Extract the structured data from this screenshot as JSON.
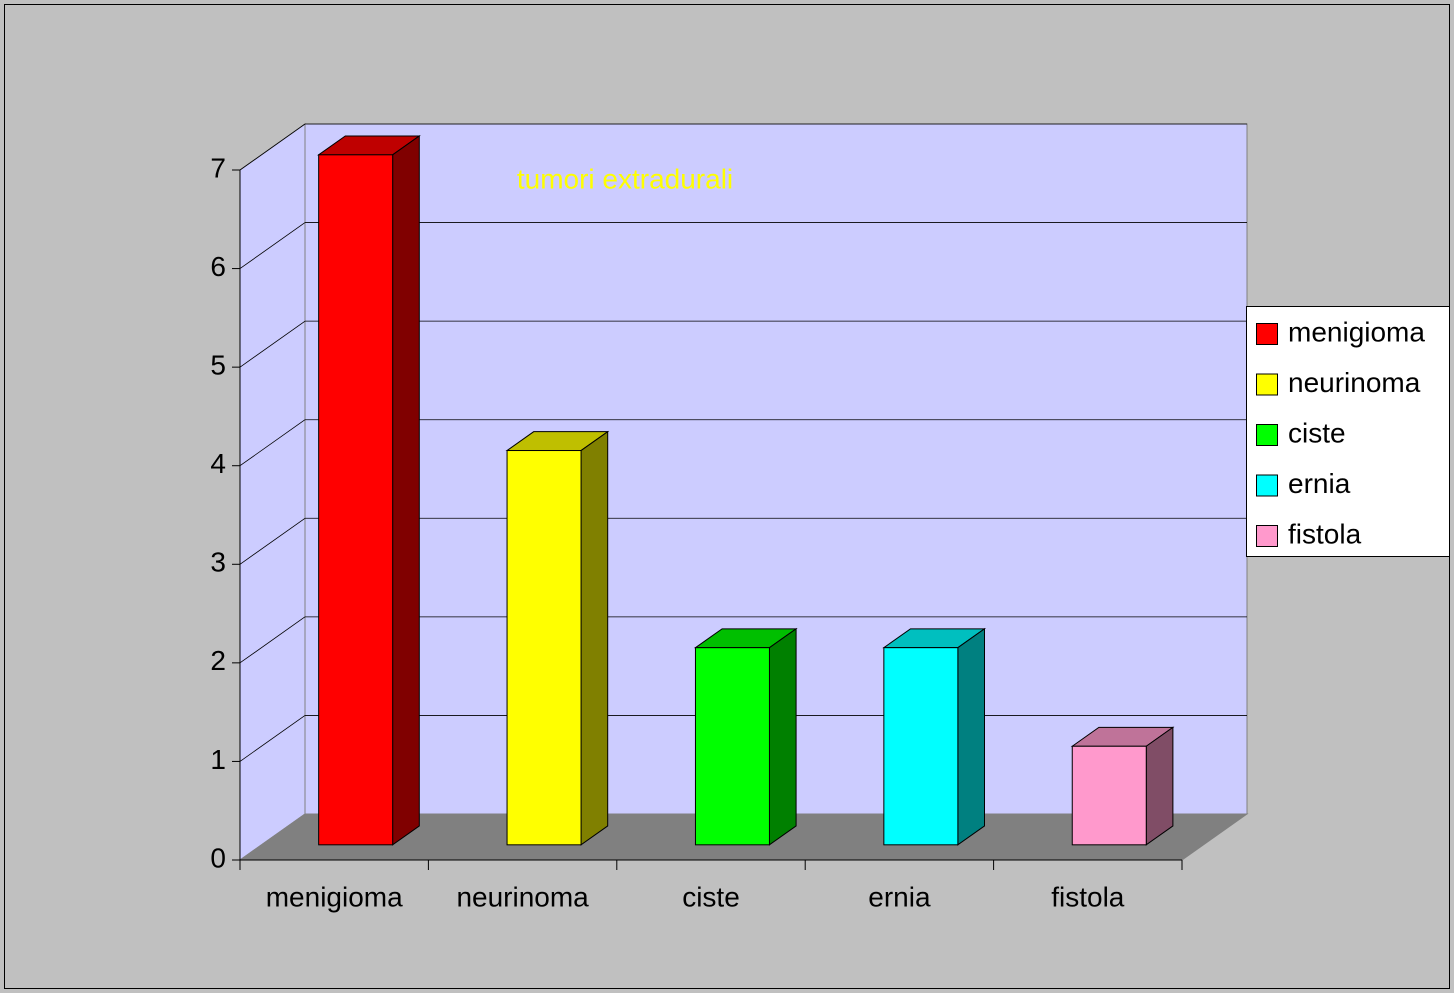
{
  "chart_data": {
    "type": "bar3d",
    "title": "tumori extradurali",
    "categories": [
      "menigioma",
      "neurinoma",
      "ciste",
      "ernia",
      "fistola"
    ],
    "values": [
      7,
      4,
      2,
      2,
      1
    ],
    "colors": [
      "#ff0000",
      "#ffff00",
      "#00ff00",
      "#00ffff",
      "#ff99cc"
    ],
    "ylim": [
      0,
      7
    ],
    "yticks": [
      0,
      1,
      2,
      3,
      4,
      5,
      6,
      7
    ],
    "grid": true,
    "legend": "right"
  }
}
